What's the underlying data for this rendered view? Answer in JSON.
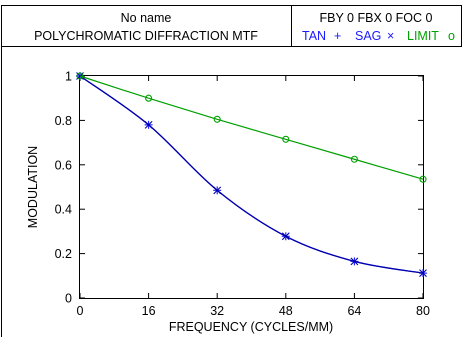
{
  "header": {
    "left_line1": "No name",
    "left_line2": "POLYCHROMATIC DIFFRACTION MTF",
    "right_line1": "FBY 0 FBX 0 FOC 0",
    "legend": [
      {
        "label": "TAN",
        "marker": "+",
        "color": "#1a1aff"
      },
      {
        "label": "SAG",
        "marker": "×",
        "color": "#1a1aff"
      },
      {
        "label": "LIMIT",
        "marker": "o",
        "color": "#00a000"
      }
    ]
  },
  "chart_data": {
    "type": "line",
    "xlabel": "FREQUENCY (CYCLES/MM)",
    "ylabel": "MODULATION",
    "xlim": [
      0,
      80
    ],
    "ylim": [
      0,
      1
    ],
    "x_ticks": [
      "0",
      "16",
      "32",
      "48",
      "64",
      "80"
    ],
    "y_ticks": [
      "0",
      "0.2",
      "0.4",
      "0.6",
      "0.8",
      "1"
    ],
    "grid": false,
    "legend_position": "header-right",
    "series": [
      {
        "name": "TAN",
        "color": "#1a1aff",
        "marker": "+",
        "x": [
          0,
          16,
          32,
          48,
          64,
          80
        ],
        "y": [
          1.0,
          0.78,
          0.485,
          0.278,
          0.165,
          0.112
        ]
      },
      {
        "name": "SAG",
        "color": "#0000aa",
        "marker": "×",
        "x": [
          0,
          16,
          32,
          48,
          64,
          80
        ],
        "y": [
          1.0,
          0.78,
          0.485,
          0.278,
          0.165,
          0.112
        ]
      },
      {
        "name": "LIMIT",
        "color": "#00a000",
        "marker": "o",
        "x": [
          0,
          16,
          32,
          48,
          64,
          80
        ],
        "y": [
          1.0,
          0.9,
          0.805,
          0.715,
          0.625,
          0.535
        ]
      }
    ]
  }
}
